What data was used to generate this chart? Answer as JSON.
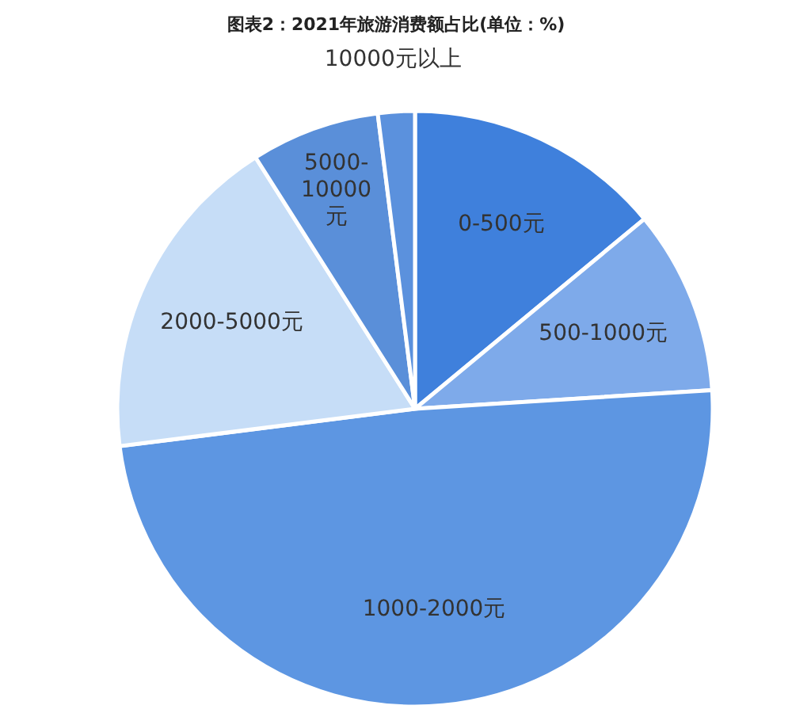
{
  "chart_data": {
    "type": "pie",
    "title": "图表2：2021年旅游消费额占比(单位：%)",
    "categories": [
      "0-500元",
      "500-1000元",
      "1000-2000元",
      "2000-5000元",
      "5000-10000元",
      "10000元以上"
    ],
    "values": [
      14,
      10,
      49,
      18,
      7,
      2
    ],
    "colors": [
      "#3f80dc",
      "#7eaaea",
      "#5d96e2",
      "#c6ddf7",
      "#5a8fd9",
      "#5b91dd"
    ]
  }
}
